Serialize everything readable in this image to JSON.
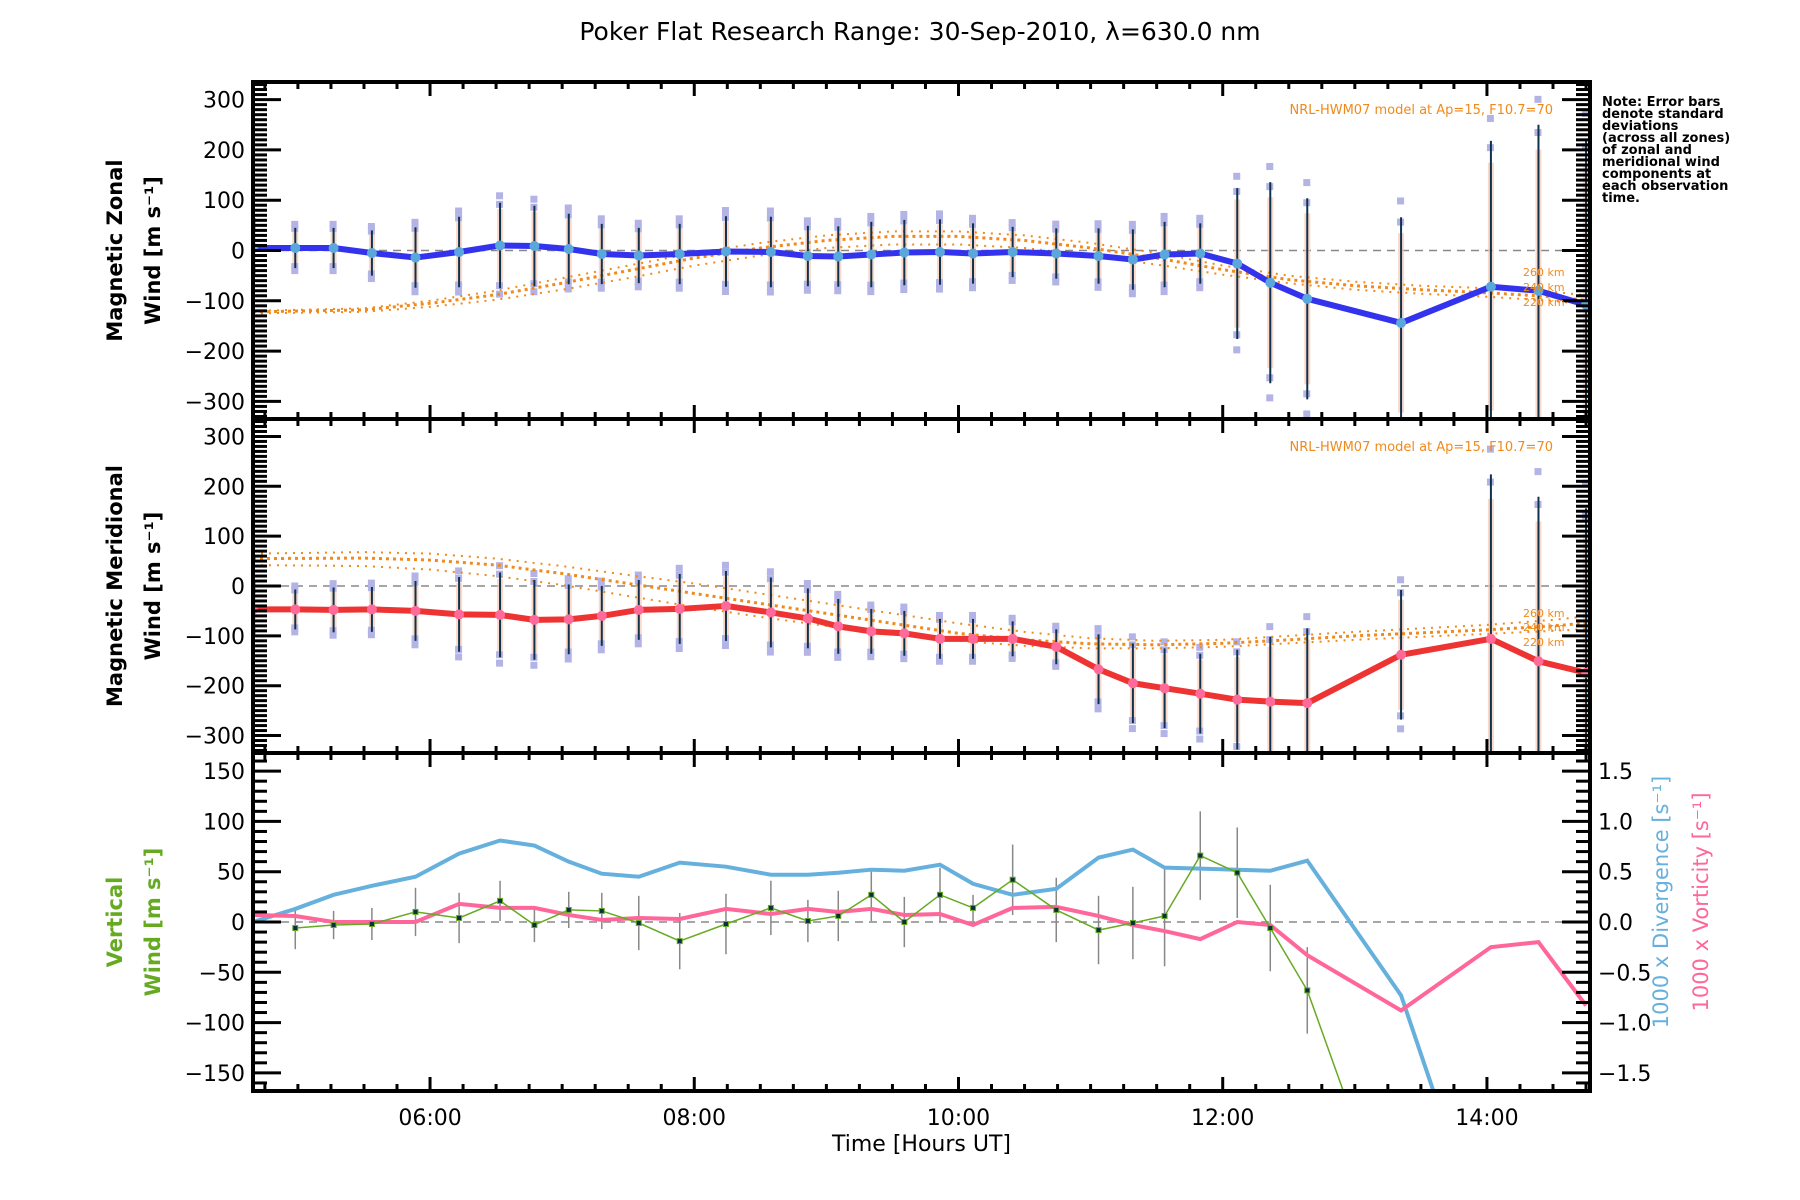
{
  "title": "Poker Flat Research Range: 30-Sep-2010, λ=630.0 nm",
  "note": [
    "Note: Error bars",
    "denote standard",
    "deviations",
    "(across all zones)",
    "of zonal and",
    "meridional wind",
    "components at",
    "each observation",
    "time."
  ],
  "colors": {
    "zonal": "#3333ee",
    "meridional": "#ee3333",
    "vertical": "#66aa22",
    "divergence": "#66b0dd",
    "vorticity": "#ff6699",
    "model": "#f08a1c",
    "errorbar": "#10324a",
    "errorbar_vertical": "#888888",
    "zero_line": "#888888",
    "scatter": "#b3b3e6"
  },
  "chart_data": [
    {
      "type": "line",
      "panel": "zonal",
      "ylabel_lines": [
        "Magnetic Zonal",
        "Wind [m s⁻¹]"
      ],
      "ylim": [
        -335,
        335
      ],
      "yticks": [
        300,
        200,
        100,
        0,
        -100,
        -200,
        -300
      ],
      "ytick_labels": [
        "300",
        "200",
        "100",
        "0",
        "−100",
        "−200",
        "−300"
      ],
      "xlim": [
        4.66,
        14.78
      ],
      "model_label": "NRL-HWM07 model at Ap=15, F10.7=70",
      "model_km_labels": [
        "260 km",
        "240 km",
        "220 km"
      ],
      "x": [
        4.66,
        4.98,
        5.27,
        5.56,
        5.89,
        6.22,
        6.53,
        6.79,
        7.05,
        7.3,
        7.58,
        7.89,
        8.24,
        8.58,
        8.86,
        9.09,
        9.34,
        9.59,
        9.86,
        10.11,
        10.41,
        10.74,
        11.06,
        11.32,
        11.56,
        11.83,
        12.11,
        12.36,
        12.64,
        13.35,
        14.03,
        14.39,
        14.75
      ],
      "series": [
        {
          "name": "Magnetic Zonal Wind",
          "values": [
            5,
            5,
            5,
            -5,
            -14,
            -3,
            10,
            9,
            3,
            -7,
            -10,
            -7,
            -2,
            -3,
            -11,
            -12,
            -8,
            -4,
            -3,
            -6,
            -3,
            -6,
            -11,
            -18,
            -8,
            -6,
            -26,
            -64,
            -96,
            -144,
            -72,
            -80,
            -108
          ],
          "errors": [
            45,
            40,
            40,
            45,
            60,
            70,
            85,
            80,
            70,
            60,
            55,
            60,
            70,
            70,
            60,
            60,
            65,
            65,
            65,
            60,
            50,
            50,
            55,
            60,
            65,
            60,
            150,
            200,
            200,
            210,
            290,
            330,
            330
          ]
        }
      ],
      "model": {
        "x": [
          4.66,
          5.5,
          6.0,
          6.5,
          7.0,
          7.5,
          8.0,
          8.5,
          9.0,
          9.5,
          10.0,
          10.5,
          11.0,
          11.5,
          12.0,
          12.5,
          13.0,
          13.5,
          14.0,
          14.5,
          14.78
        ],
        "series": [
          {
            "name": "260 km",
            "values": [
              -120,
              -115,
              -100,
              -80,
              -55,
              -30,
              -5,
              15,
              30,
              38,
              38,
              30,
              15,
              -5,
              -30,
              -50,
              -62,
              -70,
              -75,
              -82,
              -90
            ]
          },
          {
            "name": "240 km",
            "values": [
              -122,
              -118,
              -105,
              -88,
              -65,
              -40,
              -15,
              5,
              20,
              28,
              28,
              20,
              5,
              -15,
              -38,
              -58,
              -70,
              -78,
              -84,
              -92,
              -100
            ]
          },
          {
            "name": "220 km",
            "values": [
              -125,
              -122,
              -112,
              -98,
              -78,
              -55,
              -30,
              -10,
              5,
              12,
              12,
              5,
              -10,
              -28,
              -48,
              -65,
              -78,
              -86,
              -92,
              -100,
              -108
            ]
          }
        ]
      }
    },
    {
      "type": "line",
      "panel": "meridional",
      "ylabel_lines": [
        "Magnetic Meridional",
        "Wind [m s⁻¹]"
      ],
      "ylim": [
        -335,
        335
      ],
      "yticks": [
        300,
        200,
        100,
        0,
        -100,
        -200,
        -300
      ],
      "ytick_labels": [
        "300",
        "200",
        "100",
        "0",
        "−100",
        "−200",
        "−300"
      ],
      "xlim": [
        4.66,
        14.78
      ],
      "model_label": "NRL-HWM07 model at Ap=15, F10.7=70",
      "model_km_labels": [
        "260 km",
        "240 km",
        "220 km"
      ],
      "x": [
        4.66,
        4.98,
        5.27,
        5.56,
        5.89,
        6.22,
        6.53,
        6.79,
        7.05,
        7.3,
        7.58,
        7.89,
        8.24,
        8.58,
        8.86,
        9.09,
        9.34,
        9.59,
        9.86,
        10.11,
        10.41,
        10.74,
        11.06,
        11.32,
        11.56,
        11.83,
        12.11,
        12.36,
        12.64,
        13.35,
        14.03,
        14.39,
        14.75
      ],
      "series": [
        {
          "name": "Magnetic Meridional Wind",
          "values": [
            -47,
            -47,
            -48,
            -47,
            -50,
            -57,
            -58,
            -68,
            -67,
            -60,
            -48,
            -46,
            -40,
            -53,
            -65,
            -81,
            -91,
            -95,
            -106,
            -106,
            -106,
            -122,
            -167,
            -195,
            -205,
            -216,
            -228,
            -232,
            -235,
            -138,
            -106,
            -151,
            -174
          ],
          "errors": [
            40,
            40,
            45,
            45,
            60,
            75,
            85,
            80,
            70,
            60,
            60,
            70,
            70,
            70,
            60,
            55,
            45,
            45,
            40,
            40,
            35,
            35,
            70,
            80,
            80,
            80,
            100,
            130,
            150,
            130,
            330,
            330,
            330
          ]
        }
      ],
      "model": {
        "x": [
          4.66,
          5.5,
          6.0,
          6.5,
          7.0,
          7.5,
          8.0,
          8.5,
          9.0,
          9.5,
          10.0,
          10.5,
          11.0,
          11.5,
          12.0,
          12.5,
          13.0,
          13.5,
          14.0,
          14.5,
          14.78
        ],
        "series": [
          {
            "name": "260 km",
            "values": [
              65,
              68,
              65,
              55,
              40,
              22,
              5,
              -15,
              -35,
              -55,
              -75,
              -92,
              -105,
              -110,
              -108,
              -100,
              -92,
              -85,
              -78,
              -68,
              -60
            ]
          },
          {
            "name": "240 km",
            "values": [
              55,
              56,
              52,
              42,
              25,
              5,
              -15,
              -35,
              -55,
              -75,
              -95,
              -108,
              -116,
              -118,
              -115,
              -108,
              -100,
              -94,
              -88,
              -80,
              -74
            ]
          },
          {
            "name": "220 km",
            "values": [
              42,
              40,
              33,
              20,
              2,
              -20,
              -42,
              -62,
              -80,
              -96,
              -110,
              -120,
              -125,
              -125,
              -122,
              -115,
              -108,
              -102,
              -96,
              -90,
              -86
            ]
          }
        ]
      }
    },
    {
      "type": "line",
      "panel": "vertical",
      "ylabel_lines": [
        "Vertical",
        "Wind [m s⁻¹]"
      ],
      "ylim": [
        -168,
        168
      ],
      "yticks": [
        150,
        100,
        50,
        0,
        -50,
        -100,
        -150
      ],
      "ytick_labels": [
        "150",
        "100",
        "50",
        "0",
        "−50",
        "−100",
        "−150"
      ],
      "y2label": [
        "1000 x Divergence [s⁻¹]",
        "1000 x Vorticity [s⁻¹]"
      ],
      "y2lim": [
        -1.68,
        1.68
      ],
      "y2ticks": [
        1.5,
        1.0,
        0.5,
        0.0,
        -0.5,
        -1.0,
        -1.5
      ],
      "y2tick_labels": [
        "1.5",
        "1.0",
        "0.5",
        "0.0",
        "−0.5",
        "−1.0",
        "−1.5"
      ],
      "xlim": [
        4.66,
        14.78
      ],
      "xticks": [
        6,
        8,
        10,
        12,
        14
      ],
      "xtick_labels": [
        "06:00",
        "08:00",
        "10:00",
        "12:00",
        "14:00"
      ],
      "xlabel": "Time [Hours UT]",
      "vertical_wind": {
        "x": [
          4.98,
          5.27,
          5.56,
          5.89,
          6.22,
          6.53,
          6.79,
          7.05,
          7.3,
          7.58,
          7.89,
          8.24,
          8.58,
          8.86,
          9.09,
          9.34,
          9.59,
          9.86,
          10.11,
          10.41,
          10.74,
          11.06,
          11.32,
          11.56,
          11.83,
          12.11,
          12.36,
          12.64,
          13.0
        ],
        "values": [
          -6,
          -3,
          -2,
          10,
          4,
          21,
          -3,
          12,
          11,
          -1,
          -19,
          -2,
          14,
          1,
          6,
          27,
          0,
          27,
          14,
          42,
          12,
          -8,
          -1,
          6,
          66,
          49,
          -6,
          -68,
          -200
        ],
        "errors": [
          21,
          14,
          16,
          24,
          25,
          20,
          17,
          18,
          18,
          27,
          28,
          30,
          27,
          21,
          25,
          26,
          25,
          27,
          13,
          35,
          32,
          34,
          36,
          50,
          44,
          45,
          43,
          43,
          0
        ]
      },
      "divergence": {
        "x": [
          4.66,
          4.98,
          5.27,
          5.56,
          5.89,
          6.22,
          6.53,
          6.79,
          7.05,
          7.3,
          7.58,
          7.89,
          8.24,
          8.58,
          8.86,
          9.09,
          9.34,
          9.59,
          9.86,
          10.11,
          10.41,
          10.74,
          11.06,
          11.32,
          11.56,
          11.83,
          12.11,
          12.36,
          12.64,
          13.35,
          13.6
        ],
        "values": [
          0.0,
          0.13,
          0.27,
          0.36,
          0.45,
          0.68,
          0.81,
          0.76,
          0.6,
          0.48,
          0.45,
          0.59,
          0.55,
          0.47,
          0.47,
          0.49,
          0.52,
          0.51,
          0.57,
          0.38,
          0.27,
          0.33,
          0.64,
          0.72,
          0.54,
          0.53,
          0.52,
          0.51,
          0.61,
          -0.73,
          -1.7
        ]
      },
      "vorticity": {
        "x": [
          4.66,
          4.98,
          5.27,
          5.56,
          5.89,
          6.22,
          6.53,
          6.79,
          7.05,
          7.3,
          7.58,
          7.89,
          8.24,
          8.58,
          8.86,
          9.09,
          9.34,
          9.59,
          9.86,
          10.11,
          10.41,
          10.74,
          11.06,
          11.32,
          11.56,
          11.83,
          12.11,
          12.36,
          12.64,
          13.35,
          14.03,
          14.39,
          14.75
        ],
        "values": [
          0.07,
          0.06,
          0.0,
          0.0,
          0.0,
          0.18,
          0.14,
          0.14,
          0.07,
          0.02,
          0.04,
          0.03,
          0.13,
          0.08,
          0.13,
          0.1,
          0.13,
          0.07,
          0.08,
          -0.03,
          0.14,
          0.15,
          0.06,
          -0.03,
          -0.09,
          -0.17,
          0.0,
          -0.03,
          -0.33,
          -0.88,
          -0.25,
          -0.2,
          -0.83
        ]
      }
    }
  ]
}
